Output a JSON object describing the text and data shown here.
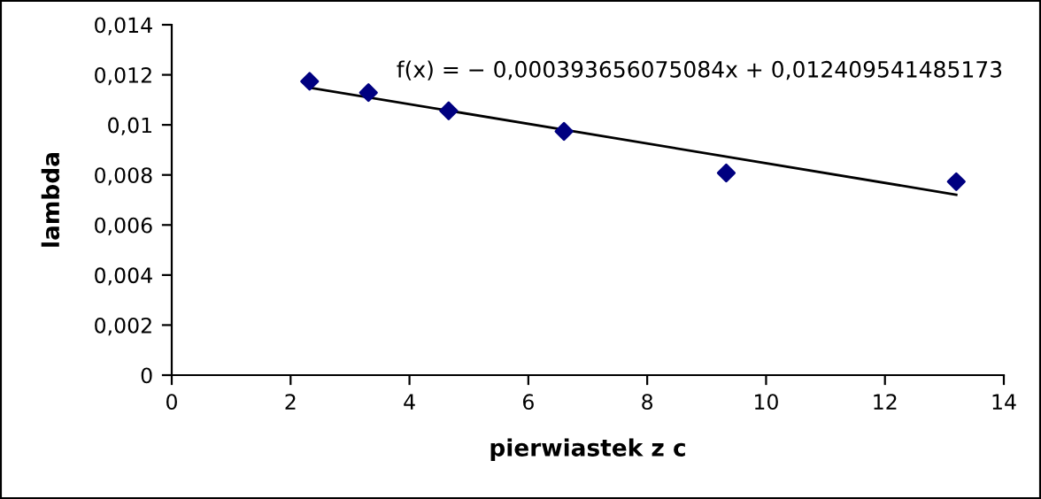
{
  "chart_data": {
    "type": "scatter",
    "xlabel": "pierwiastek z c",
    "ylabel": "lambda",
    "xlim": [
      0,
      14
    ],
    "xticks": [
      0,
      2,
      4,
      6,
      8,
      10,
      12,
      14
    ],
    "ylim": [
      0,
      0.014
    ],
    "yticks": [
      {
        "value": 0,
        "label": "0"
      },
      {
        "value": 0.002,
        "label": "0,002"
      },
      {
        "value": 0.004,
        "label": "0,004"
      },
      {
        "value": 0.006,
        "label": "0,006"
      },
      {
        "value": 0.008,
        "label": "0,008"
      },
      {
        "value": 0.01,
        "label": "0,01"
      },
      {
        "value": 0.012,
        "label": "0,012"
      },
      {
        "value": 0.014,
        "label": "0,014"
      }
    ],
    "grid": false,
    "legend": false,
    "marker": "diamond",
    "series": [
      {
        "color": "#000080",
        "x": [
          2.32,
          3.31,
          4.66,
          6.6,
          9.33,
          13.2
        ],
        "values": [
          0.01174,
          0.01129,
          0.01056,
          0.00974,
          0.00808,
          0.00773
        ]
      },
      {
        "type": "line",
        "color": "#000000",
        "marker": "none",
        "x": [
          2.32,
          13.2
        ],
        "values": [
          0.01149,
          0.00721
        ]
      }
    ],
    "annotations": [
      "f(x) = − 0,000393656075084x + 0,012409541485173"
    ]
  }
}
